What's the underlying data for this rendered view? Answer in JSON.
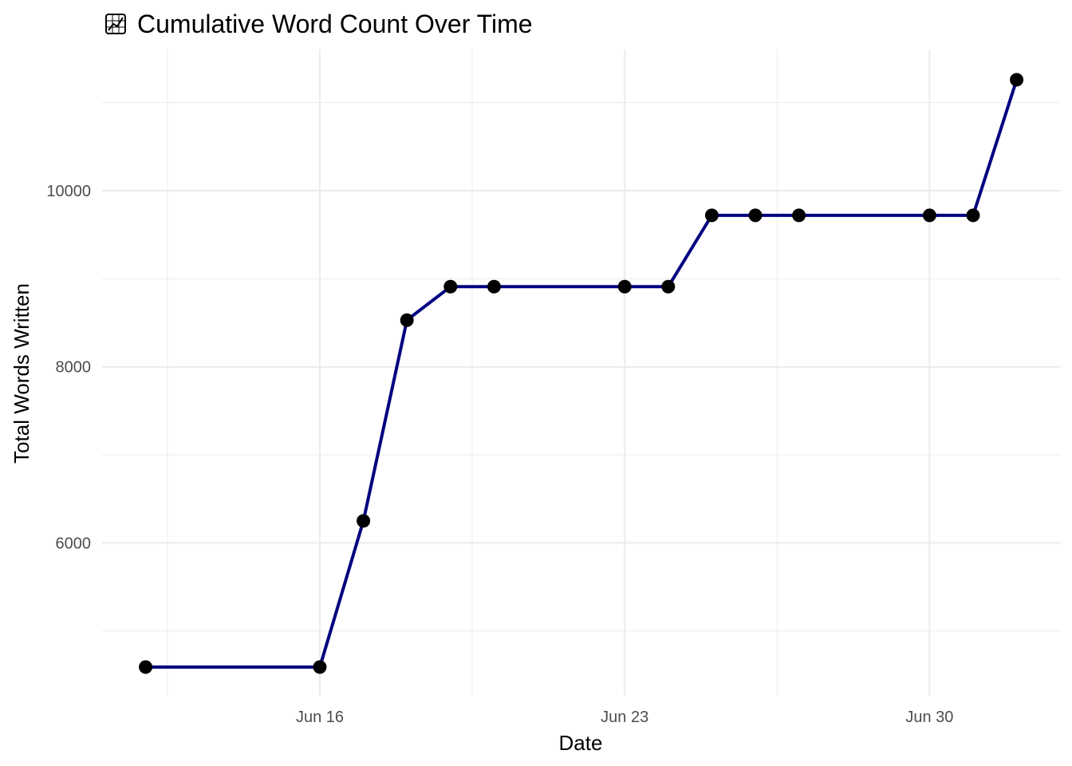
{
  "chart_data": {
    "type": "line",
    "title": "Cumulative Word Count Over Time",
    "title_icon": "chart-increasing-icon",
    "xlabel": "Date",
    "ylabel": "Total Words Written",
    "x_ticks": [
      "Jun 16",
      "Jun 23",
      "Jun 30"
    ],
    "y_ticks": [
      6000,
      8000,
      10000
    ],
    "grid": true,
    "colors": {
      "line": "#000080",
      "points": "#000000",
      "grid": "#ebebeb"
    },
    "series": [
      {
        "x": [
          "2024-06-12",
          "2024-06-16",
          "2024-06-17",
          "2024-06-18",
          "2024-06-19",
          "2024-06-20",
          "2024-06-23",
          "2024-06-24",
          "2024-06-25",
          "2024-06-26",
          "2024-06-27",
          "2024-06-30",
          "2024-07-01",
          "2024-07-02"
        ],
        "y": [
          4590,
          4590,
          6250,
          8530,
          8910,
          8910,
          8910,
          8910,
          9720,
          9720,
          9720,
          9720,
          9720,
          11260
        ]
      }
    ]
  }
}
